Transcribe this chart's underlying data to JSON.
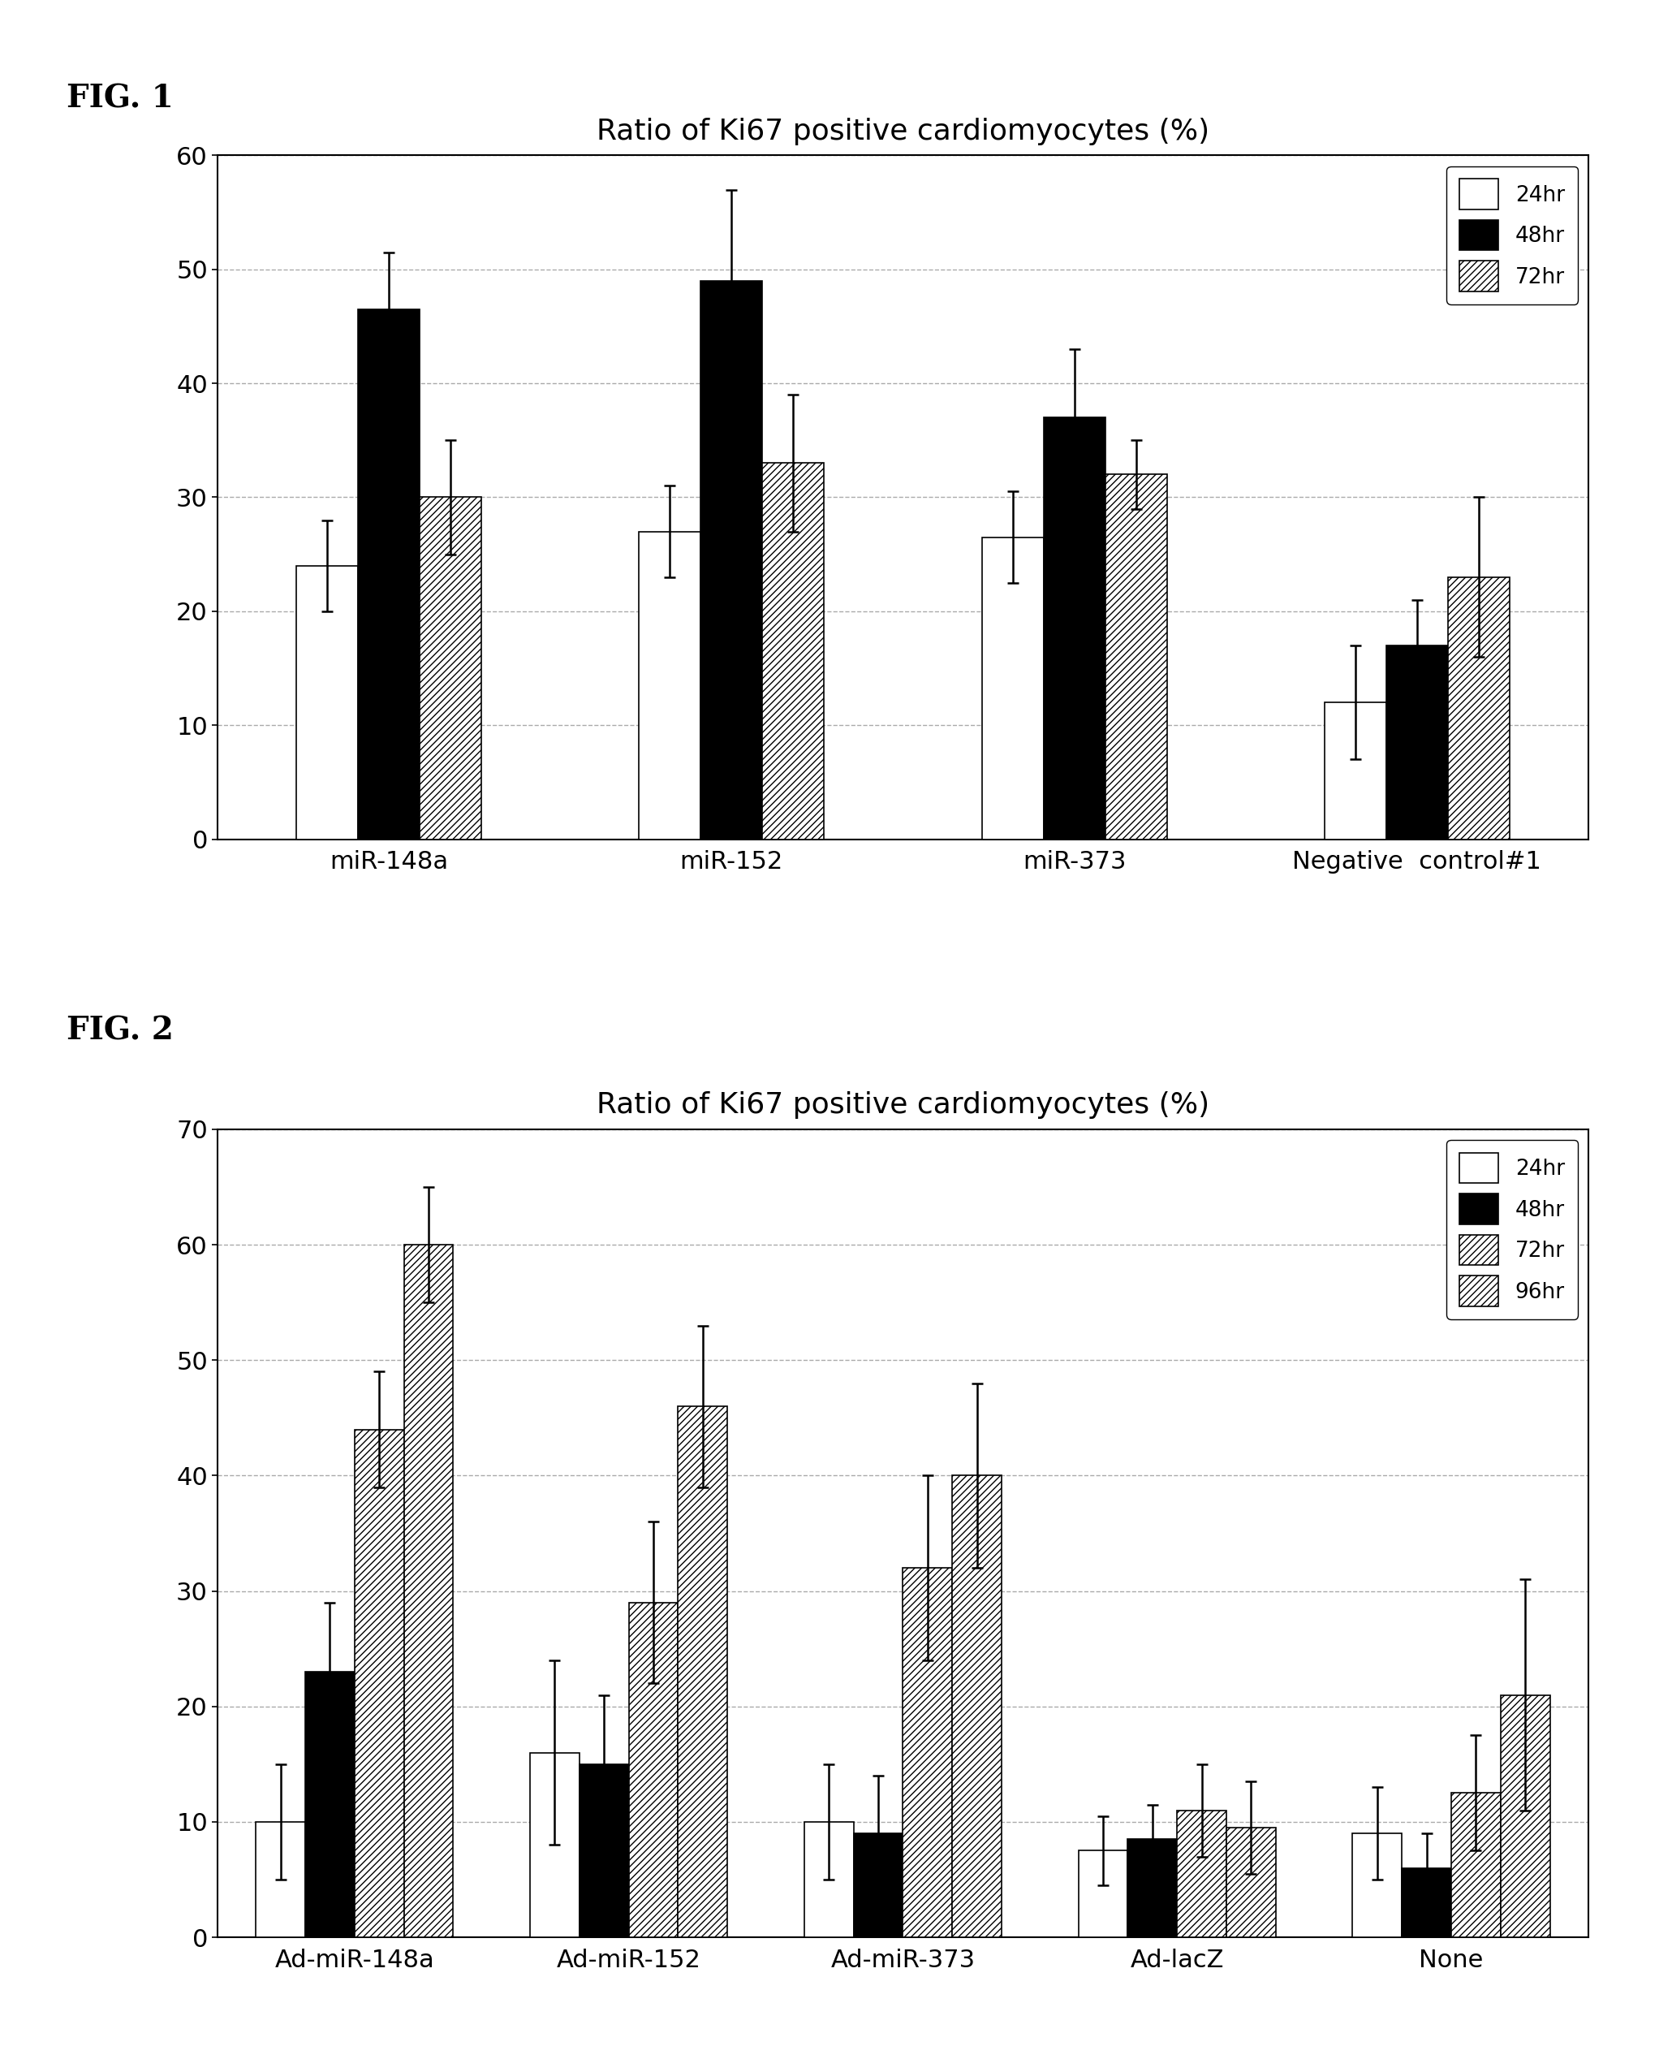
{
  "fig1": {
    "title": "Ratio of Ki67 positive cardiomyocytes (%)",
    "fig_label": "FIG. 1",
    "categories": [
      "miR-148a",
      "miR-152",
      "miR-373",
      "Negative  control#1"
    ],
    "series": {
      "24hr": [
        24,
        27,
        26.5,
        12
      ],
      "48hr": [
        46.5,
        49,
        37,
        17
      ],
      "72hr": [
        30,
        33,
        32,
        23
      ]
    },
    "errors": {
      "24hr": [
        4,
        4,
        4,
        5
      ],
      "48hr": [
        5,
        8,
        6,
        4
      ],
      "72hr": [
        5,
        6,
        3,
        7
      ]
    },
    "ylim": [
      0,
      60
    ],
    "yticks": [
      0,
      10,
      20,
      30,
      40,
      50,
      60
    ],
    "legend_labels": [
      "24hr",
      "48hr",
      "72hr"
    ]
  },
  "fig2": {
    "title": "Ratio of Ki67 positive cardiomyocytes (%)",
    "fig_label": "FIG. 2",
    "categories": [
      "Ad-miR-148a",
      "Ad-miR-152",
      "Ad-miR-373",
      "Ad-lacZ",
      "None"
    ],
    "series": {
      "24hr": [
        10,
        16,
        10,
        7.5,
        9
      ],
      "48hr": [
        23,
        15,
        9,
        8.5,
        6
      ],
      "72hr": [
        44,
        29,
        32,
        11,
        12.5
      ],
      "96hr": [
        60,
        46,
        40,
        9.5,
        21
      ]
    },
    "errors": {
      "24hr": [
        5,
        8,
        5,
        3,
        4
      ],
      "48hr": [
        6,
        6,
        5,
        3,
        3
      ],
      "72hr": [
        5,
        7,
        8,
        4,
        5
      ],
      "96hr": [
        5,
        7,
        8,
        4,
        10
      ]
    },
    "ylim": [
      0,
      70
    ],
    "yticks": [
      0,
      10,
      20,
      30,
      40,
      50,
      60,
      70
    ],
    "legend_labels": [
      "24hr",
      "48hr",
      "72hr",
      "96hr"
    ]
  },
  "bar_width": 0.18,
  "background_color": "#ffffff",
  "grid_color": "#aaaaaa",
  "font_size_title": 26,
  "font_size_tick": 22,
  "font_size_legend": 19,
  "font_size_fig_label": 28,
  "font_size_xticklabel": 22
}
